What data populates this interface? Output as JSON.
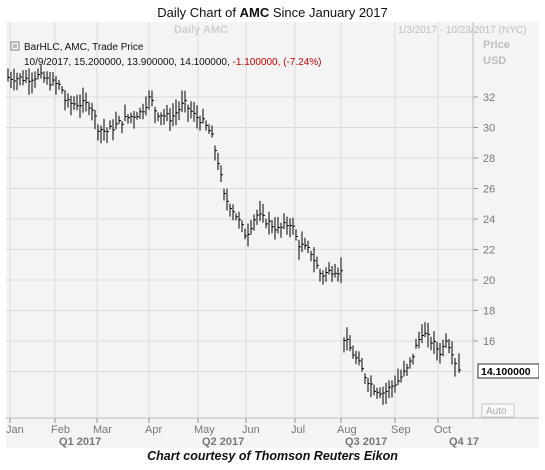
{
  "title": {
    "prefix": "Daily Chart of ",
    "ticker": "AMC",
    "suffix": " Since January 2017"
  },
  "caption": "Chart courtesy of Thomson Reuters Eikon",
  "chart_header": {
    "watermark": "Daily AMC",
    "range": "1/3/2017 - 10/23/2017 (NYC)",
    "price_label": "Price",
    "currency_label": "USD",
    "legend": "BarHLC, AMC, Trade Price",
    "last_bar_prefix": "10/9/2017, 15.200000, 13.900000, 14.100000, ",
    "last_bar_change": "-1.100000, (-7.24%)",
    "price_tag": "14.100000",
    "auto_button": "Auto"
  },
  "colors": {
    "bars": "#000000",
    "change": "#cc0000",
    "panel": "#f4f4f4",
    "grid": "#dcdcdc",
    "axis_text": "#777777"
  },
  "chart_data": {
    "type": "bar",
    "style": "HLC bars",
    "series": [
      {
        "name": "AMC",
        "x": [
          "Jan",
          "Feb",
          "Mar",
          "Apr",
          "May",
          "Jun",
          "Jul",
          "Aug",
          "Sep",
          "Oct"
        ],
        "close": [
          33.5,
          31.5,
          29.8,
          31.2,
          30.2,
          24.0,
          22.5,
          16.0,
          14.0,
          14.1
        ]
      }
    ],
    "last_bar": {
      "date": "10/9/2017",
      "high": 15.2,
      "low": 13.9,
      "close": 14.1,
      "change": -1.1,
      "change_pct": -7.24
    },
    "x_tick_labels": [
      "Jan",
      "Feb",
      "Mar",
      "Apr",
      "May",
      "Jun",
      "Jul",
      "Aug",
      "Sep",
      "Oct"
    ],
    "x_quarter_labels": [
      "Q1 2017",
      "Q2 2017",
      "Q3 2017",
      "Q4 17"
    ],
    "y_tick_labels": [
      "32",
      "30",
      "28",
      "26",
      "24",
      "22",
      "20",
      "18",
      "16"
    ],
    "ylim": [
      12,
      34
    ],
    "ylabel": "Price USD",
    "grid": true,
    "y_axis_position": "right"
  }
}
